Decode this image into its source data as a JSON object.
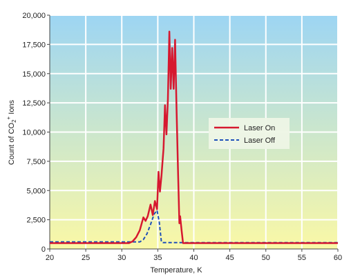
{
  "chart_data": {
    "type": "line",
    "title": "",
    "xlabel": "Temperature, K",
    "ylabel_parts": {
      "prefix": "Count of CO",
      "sub": "2",
      "sup": "+",
      "suffix": " Ions"
    },
    "xlim": [
      20,
      60
    ],
    "ylim": [
      0,
      20000
    ],
    "xticks": [
      "20",
      "25",
      "30",
      "35",
      "40",
      "45",
      "50",
      "55",
      "60"
    ],
    "yticks": [
      "0",
      "2,500",
      "5,000",
      "7,500",
      "10,000",
      "12,500",
      "15,000",
      "17,500",
      "20,000"
    ],
    "grid": true,
    "legend_position": "right",
    "background_gradient": [
      "#9dd5f3",
      "#faf8a6"
    ],
    "series": [
      {
        "name": "Laser On",
        "color": "#d6182f",
        "dash": "solid",
        "x": [
          20,
          31,
          31.5,
          32,
          32.5,
          33,
          33.3,
          33.6,
          34,
          34.3,
          34.6,
          34.9,
          35.1,
          35.3,
          35.5,
          35.8,
          36,
          36.2,
          36.4,
          36.6,
          36.8,
          37,
          37.2,
          37.4,
          37.6,
          37.8,
          38,
          38.1,
          38.3,
          38.5,
          38.7,
          40,
          60
        ],
        "y": [
          500,
          500,
          650,
          1000,
          1600,
          2700,
          2400,
          2800,
          3800,
          2900,
          4100,
          3400,
          6600,
          4900,
          6200,
          8600,
          12300,
          9800,
          12800,
          18600,
          13700,
          17200,
          13700,
          17900,
          12000,
          6800,
          2200,
          2800,
          1600,
          500,
          500,
          500,
          500
        ]
      },
      {
        "name": "Laser Off",
        "color": "#1d4fb8",
        "dash": "dashed",
        "x": [
          20,
          32.5,
          33,
          33.5,
          34,
          34.5,
          34.9,
          35.2,
          35.5,
          35.7,
          36,
          38.3,
          60
        ],
        "y": [
          600,
          600,
          800,
          1300,
          2100,
          3000,
          3300,
          2300,
          600,
          550,
          550,
          550,
          550
        ]
      }
    ]
  }
}
